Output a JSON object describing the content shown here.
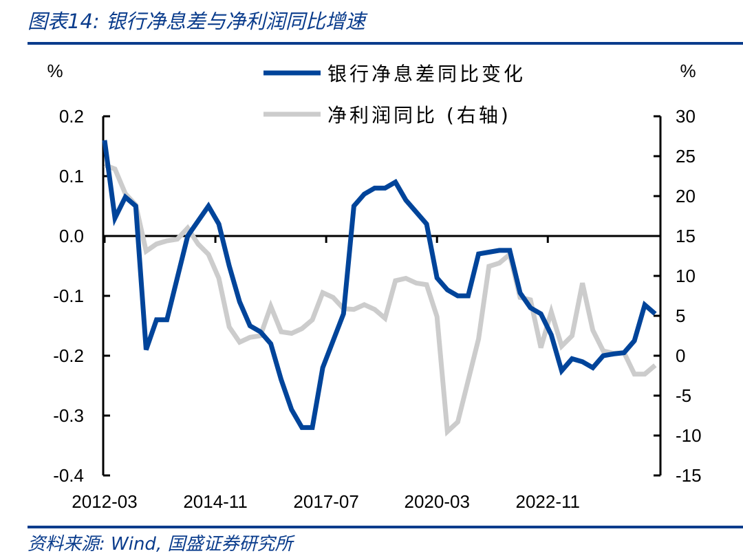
{
  "header": {
    "title": "图表14: 银行净息差与净利润同比增速"
  },
  "footer": {
    "source": "资料来源: Wind, 国盛证券研究所"
  },
  "colors": {
    "brand": "#0a3c8c",
    "series_nim": "#00449a",
    "series_profit": "#cccccc"
  },
  "chart_data": {
    "type": "line",
    "title": "",
    "left_unit": "%",
    "right_unit": "%",
    "x_tick_labels": [
      "2012-03",
      "2014-11",
      "2017-07",
      "2020-03",
      "2022-11"
    ],
    "x_frequency": "quarterly",
    "x_start": "2012-03",
    "y_left": {
      "range": [
        -0.4,
        0.2
      ],
      "ticks": [
        "0.2",
        "0.1",
        "0.0",
        "-0.1",
        "-0.2",
        "-0.3",
        "-0.4"
      ]
    },
    "y_right": {
      "range": [
        -15,
        30
      ],
      "ticks": [
        "30",
        "25",
        "20",
        "15",
        "10",
        "5",
        "0",
        "-5",
        "-10",
        "-15"
      ]
    },
    "grid": false,
    "legend_placement": "top-center",
    "series": [
      {
        "name": "银行净息差同比变化",
        "axis": "left",
        "color": "#00449a",
        "values": [
          0.16,
          0.03,
          0.065,
          0.05,
          -0.19,
          -0.14,
          -0.14,
          -0.07,
          0.0,
          0.025,
          0.05,
          0.02,
          -0.05,
          -0.11,
          -0.15,
          -0.16,
          -0.18,
          -0.24,
          -0.29,
          -0.32,
          -0.32,
          -0.22,
          -0.175,
          -0.13,
          0.05,
          0.07,
          0.08,
          0.08,
          0.09,
          0.06,
          0.04,
          0.02,
          -0.07,
          -0.09,
          -0.1,
          -0.1,
          -0.03,
          -0.027,
          -0.024,
          -0.024,
          -0.095,
          -0.12,
          -0.13,
          -0.165,
          -0.225,
          -0.205,
          -0.21,
          -0.22,
          -0.2,
          -0.197,
          -0.195,
          -0.175,
          -0.115,
          -0.13
        ]
      },
      {
        "name": "净利润同比 (右轴)",
        "axis": "right",
        "color": "#cccccc",
        "values": [
          23.9,
          23.4,
          20.3,
          18.9,
          13.1,
          14.0,
          14.4,
          14.6,
          16.0,
          14.0,
          12.7,
          9.7,
          3.6,
          1.7,
          2.3,
          2.5,
          6.2,
          3.0,
          2.8,
          3.4,
          4.5,
          7.9,
          7.3,
          5.9,
          5.8,
          6.4,
          5.8,
          4.7,
          9.4,
          9.7,
          9.1,
          8.9,
          4.9,
          -9.5,
          -8.3,
          -3.1,
          2.1,
          11.2,
          11.6,
          12.7,
          7.3,
          7.0,
          1.0,
          5.5,
          1.2,
          2.5,
          9.1,
          3.2,
          0.6,
          0.3,
          0.4,
          -2.3,
          -2.3,
          -1.2
        ]
      }
    ]
  }
}
